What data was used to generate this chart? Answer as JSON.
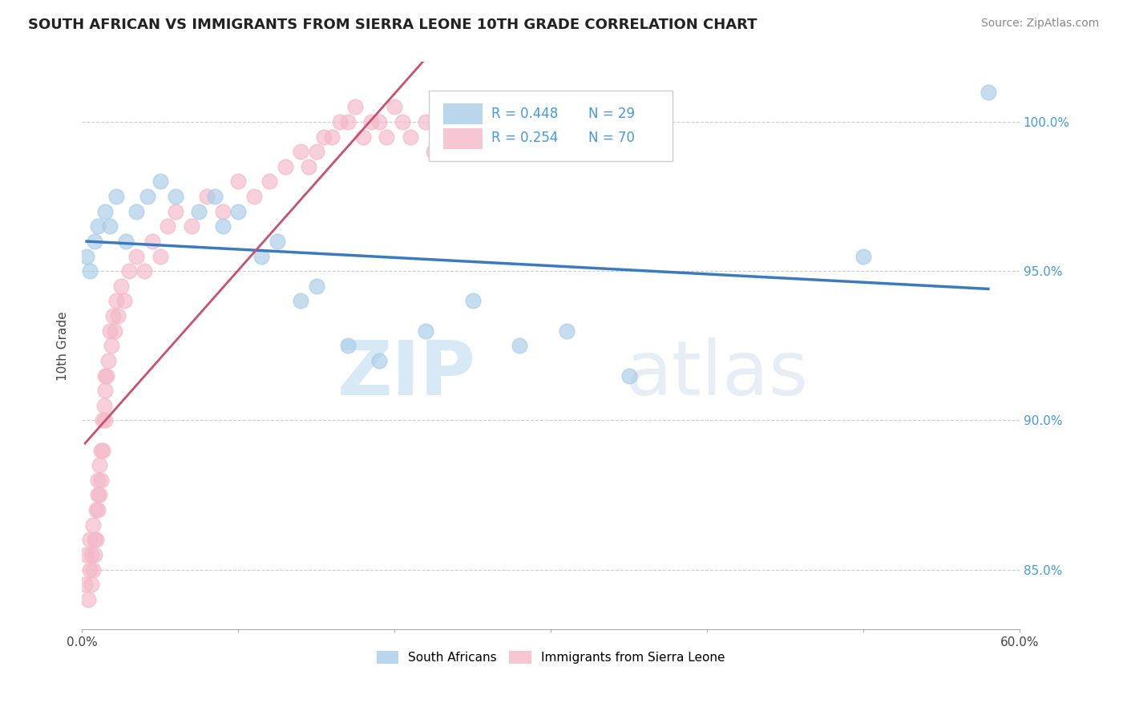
{
  "title": "SOUTH AFRICAN VS IMMIGRANTS FROM SIERRA LEONE 10TH GRADE CORRELATION CHART",
  "source": "Source: ZipAtlas.com",
  "ylabel": "10th Grade",
  "xlim": [
    0.0,
    60.0
  ],
  "ylim": [
    83.0,
    102.0
  ],
  "xticks": [
    0.0,
    10.0,
    20.0,
    30.0,
    40.0,
    50.0,
    60.0
  ],
  "yticks": [
    85.0,
    90.0,
    95.0,
    100.0
  ],
  "ytick_labels": [
    "85.0%",
    "90.0%",
    "95.0%",
    "100.0%"
  ],
  "legend_blue_label": "South Africans",
  "legend_pink_label": "Immigrants from Sierra Leone",
  "r_blue": "R = 0.448",
  "n_blue": "N = 29",
  "r_pink": "R = 0.254",
  "n_pink": "N = 70",
  "blue_color": "#a8cce8",
  "pink_color": "#f4b8c8",
  "trend_blue_color": "#3a7bbf",
  "trend_pink_color": "#c9506e",
  "watermark_zip": "ZIP",
  "watermark_atlas": "atlas",
  "south_african_x": [
    0.3,
    0.5,
    0.8,
    1.0,
    1.5,
    1.8,
    2.2,
    2.8,
    3.5,
    4.2,
    5.0,
    6.0,
    7.5,
    8.5,
    9.0,
    10.0,
    11.5,
    12.5,
    14.0,
    15.0,
    17.0,
    19.0,
    22.0,
    25.0,
    28.0,
    31.0,
    35.0,
    50.0,
    58.0
  ],
  "south_african_y": [
    95.5,
    95.0,
    96.0,
    96.5,
    97.0,
    96.5,
    97.5,
    96.0,
    97.0,
    97.5,
    98.0,
    97.5,
    97.0,
    97.5,
    96.5,
    97.0,
    95.5,
    96.0,
    94.0,
    94.5,
    92.5,
    92.0,
    93.0,
    94.0,
    92.5,
    93.0,
    91.5,
    95.5,
    101.0
  ],
  "sierra_leone_x": [
    0.2,
    0.3,
    0.4,
    0.5,
    0.5,
    0.6,
    0.6,
    0.7,
    0.7,
    0.8,
    0.8,
    0.9,
    0.9,
    1.0,
    1.0,
    1.0,
    1.1,
    1.1,
    1.2,
    1.2,
    1.3,
    1.3,
    1.4,
    1.5,
    1.5,
    1.5,
    1.6,
    1.7,
    1.8,
    1.9,
    2.0,
    2.1,
    2.2,
    2.3,
    2.5,
    2.7,
    3.0,
    3.5,
    4.0,
    4.5,
    5.0,
    5.5,
    6.0,
    7.0,
    8.0,
    9.0,
    10.0,
    11.0,
    12.0,
    13.0,
    14.0,
    14.5,
    15.0,
    15.5,
    16.0,
    16.5,
    17.0,
    17.5,
    18.0,
    18.5,
    19.0,
    19.5,
    20.0,
    20.5,
    21.0,
    22.0,
    22.5,
    23.0,
    24.0,
    25.0
  ],
  "sierra_leone_y": [
    84.5,
    85.5,
    84.0,
    85.0,
    86.0,
    84.5,
    85.5,
    86.5,
    85.0,
    86.0,
    85.5,
    87.0,
    86.0,
    87.5,
    88.0,
    87.0,
    88.5,
    87.5,
    89.0,
    88.0,
    90.0,
    89.0,
    90.5,
    91.0,
    90.0,
    91.5,
    91.5,
    92.0,
    93.0,
    92.5,
    93.5,
    93.0,
    94.0,
    93.5,
    94.5,
    94.0,
    95.0,
    95.5,
    95.0,
    96.0,
    95.5,
    96.5,
    97.0,
    96.5,
    97.5,
    97.0,
    98.0,
    97.5,
    98.0,
    98.5,
    99.0,
    98.5,
    99.0,
    99.5,
    99.5,
    100.0,
    100.0,
    100.5,
    99.5,
    100.0,
    100.0,
    99.5,
    100.5,
    100.0,
    99.5,
    100.0,
    99.0,
    100.5,
    100.0,
    100.5
  ]
}
